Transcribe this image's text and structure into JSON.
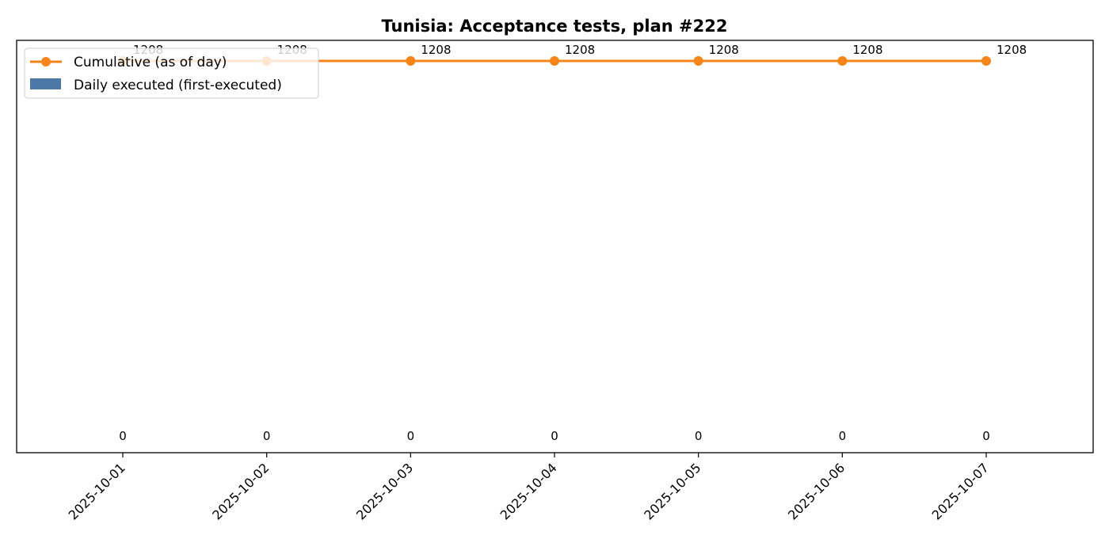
{
  "chart_data": {
    "type": "bar",
    "title": "Tunisia: Acceptance tests, plan #222",
    "xlabel": "",
    "ylabel": "",
    "categories": [
      "2025-10-01",
      "2025-10-02",
      "2025-10-03",
      "2025-10-04",
      "2025-10-05",
      "2025-10-06",
      "2025-10-07"
    ],
    "series": [
      {
        "name": "Daily executed (first-executed)",
        "type": "bar",
        "color": "#4c78a8",
        "values": [
          0,
          0,
          0,
          0,
          0,
          0,
          0
        ],
        "labels": [
          "0",
          "0",
          "0",
          "0",
          "0",
          "0",
          "0"
        ]
      },
      {
        "name": "Cumulative (as of day)",
        "type": "line",
        "marker": "circle",
        "color": "#f58518",
        "values": [
          1208,
          1208,
          1208,
          1208,
          1208,
          1208,
          1208
        ],
        "labels": [
          "1208",
          "1208",
          "1208",
          "1208",
          "1208",
          "1208",
          "1208"
        ]
      }
    ],
    "ylim": [
      0,
      1300
    ],
    "grid": false,
    "legend": "upper left"
  }
}
